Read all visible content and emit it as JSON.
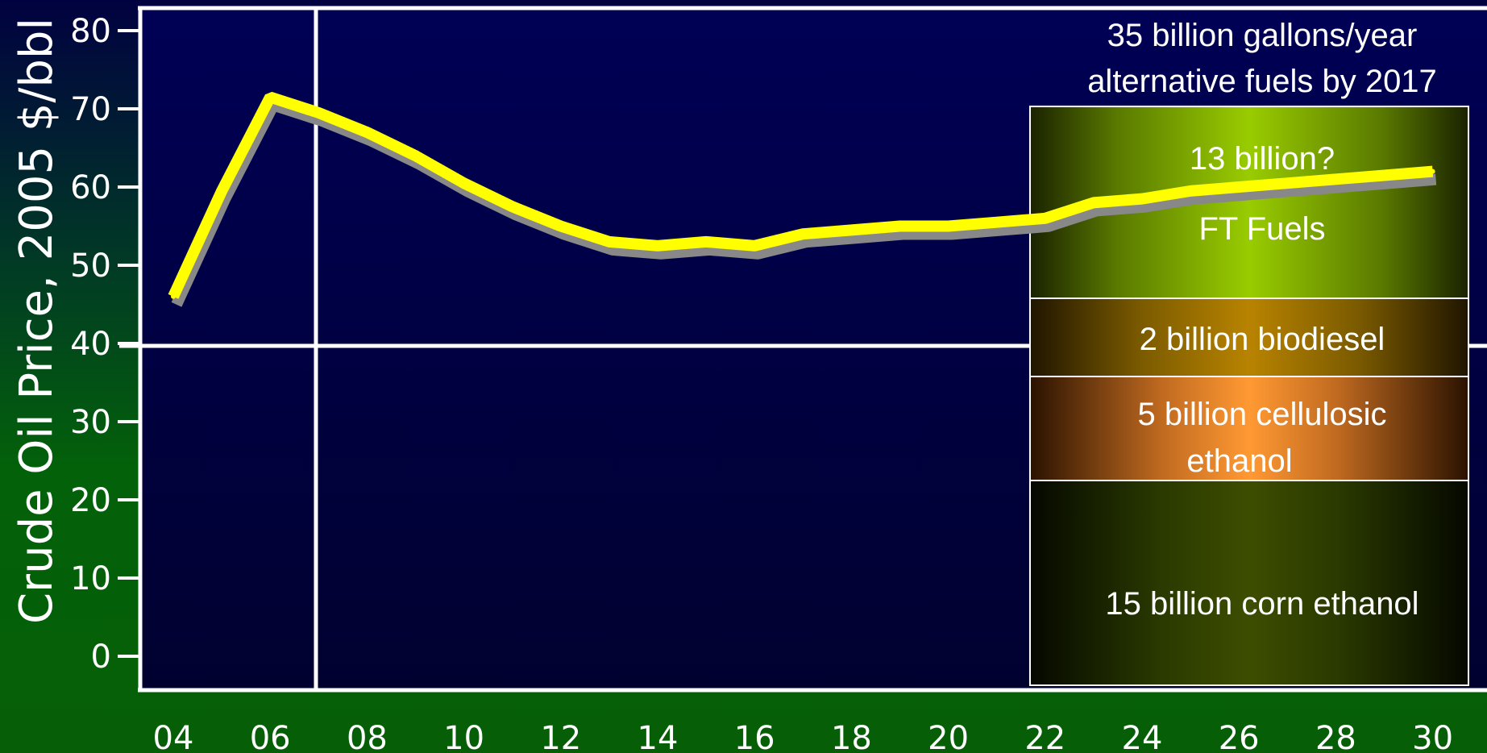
{
  "chart_data": {
    "type": "line",
    "ylabel": "Crude Oil Price, 2005 $/bbl",
    "xlabel": "",
    "ylim": [
      0,
      80
    ],
    "y_ticks": [
      "0",
      "10",
      "20",
      "30",
      "40",
      "50",
      "60",
      "70",
      "80"
    ],
    "x_ticks": [
      "04",
      "06",
      "08",
      "10",
      "12",
      "14",
      "16",
      "18",
      "20",
      "22",
      "24",
      "26",
      "28",
      "30"
    ],
    "xlim": [
      2004,
      2030
    ],
    "series": [
      {
        "x": [
          2004,
          2005,
          2006,
          2007,
          2008,
          2009,
          2010,
          2011,
          2012,
          2013,
          2014,
          2015,
          2016,
          2017,
          2018,
          2019,
          2020,
          2021,
          2022,
          2023,
          2024,
          2025,
          2026,
          2027,
          2028,
          2029,
          2030
        ],
        "values": [
          46,
          59.5,
          71.5,
          69.5,
          67,
          64,
          60.5,
          57.5,
          55,
          53,
          52.5,
          53,
          52.5,
          54,
          54.5,
          55,
          55,
          55.5,
          56,
          58,
          58.5,
          59.5,
          60,
          60.5,
          61,
          61.5,
          62
        ]
      }
    ],
    "annotations": {
      "header": [
        "35 billion gallons/year",
        "alternative fuels by 2017"
      ],
      "segments": [
        {
          "lines": [
            "13 billion?",
            "FT Fuels"
          ],
          "color": "#99cc00"
        },
        {
          "lines": [
            "2 billion biodiesel"
          ],
          "color": "#b88300"
        },
        {
          "lines": [
            "5 billion cellulosic",
            "ethanol"
          ],
          "color": "#ff9933"
        },
        {
          "lines": [
            "15 billion corn ethanol"
          ],
          "color": "#3d4d00"
        }
      ]
    },
    "colors": {
      "line": "#ffff00",
      "shadow": "#888888",
      "plot_bg_top": "#000055",
      "plot_bg_bottom": "#010130",
      "axes": "#ffffff"
    },
    "grid": "one vertical line between 06 and 08, one horizontal line at 40"
  }
}
